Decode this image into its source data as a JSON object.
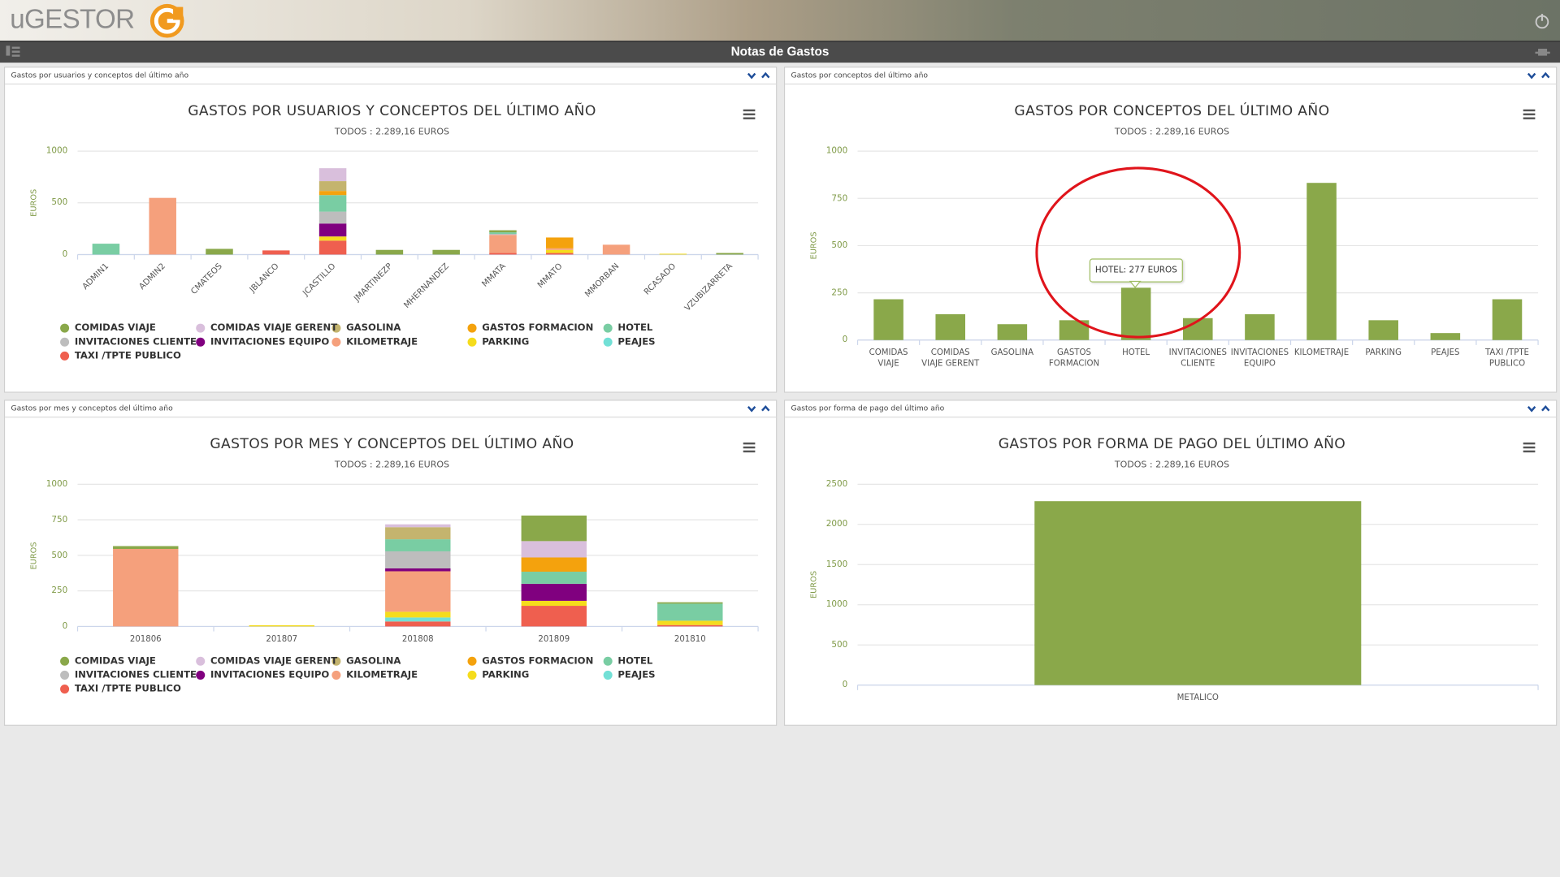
{
  "app": {
    "logo": "uGESTOR",
    "page_title": "Notas de Gastos"
  },
  "panels": [
    {
      "header": "Gastos por usuarios y conceptos del último año"
    },
    {
      "header": "Gastos por conceptos del último año"
    },
    {
      "header": "Gastos por mes y conceptos del último año"
    },
    {
      "header": "Gastos por forma de pago del último año"
    }
  ],
  "chart_data": [
    {
      "type": "stacked_bar",
      "title": "GASTOS POR USUARIOS Y CONCEPTOS DEL ÚLTIMO AÑO",
      "subtitle": "TODOS : 2.289,16 EUROS",
      "y_label": "EUROS",
      "xlabel_rotation": -45,
      "categories": [
        "ADMIN1",
        "ADMIN2",
        "CMATEOS",
        "JBLANCO",
        "JCASTILLO",
        "JMARTINEZP",
        "MHERNANDEZ",
        "MMATA",
        "MMATO",
        "MMORBAN",
        "RCASADO",
        "VZUBIZARRETA"
      ],
      "series": [
        {
          "name": "COMIDAS VIAJE",
          "color": "#8aa84a",
          "values": [
            0,
            0,
            55,
            0,
            0,
            45,
            45,
            20,
            0,
            0,
            0,
            15
          ]
        },
        {
          "name": "COMIDAS VIAJE GERENT",
          "color": "#d9bfdc",
          "values": [
            0,
            0,
            0,
            0,
            125,
            0,
            0,
            0,
            0,
            0,
            0,
            0
          ]
        },
        {
          "name": "GASOLINA",
          "color": "#c4b46e",
          "values": [
            0,
            0,
            0,
            0,
            95,
            0,
            0,
            0,
            0,
            0,
            0,
            0
          ]
        },
        {
          "name": "GASTOS FORMACION",
          "color": "#f4a20d",
          "values": [
            0,
            0,
            0,
            0,
            40,
            0,
            0,
            0,
            105,
            0,
            0,
            0
          ]
        },
        {
          "name": "HOTEL",
          "color": "#79cda3",
          "values": [
            105,
            0,
            0,
            0,
            160,
            0,
            0,
            15,
            0,
            0,
            0,
            0
          ]
        },
        {
          "name": "INVITACIONES CLIENTE",
          "color": "#bdbdbd",
          "values": [
            0,
            0,
            0,
            0,
            115,
            0,
            0,
            10,
            0,
            0,
            0,
            0
          ]
        },
        {
          "name": "INVITACIONES EQUIPO",
          "color": "#80007f",
          "values": [
            0,
            0,
            0,
            0,
            125,
            0,
            0,
            0,
            0,
            0,
            0,
            0
          ]
        },
        {
          "name": "KILOMETRAJE",
          "color": "#f5a07c",
          "values": [
            0,
            548,
            0,
            0,
            0,
            0,
            0,
            175,
            15,
            95,
            0,
            0
          ]
        },
        {
          "name": "PARKING",
          "color": "#f5dc1c",
          "values": [
            0,
            0,
            0,
            0,
            40,
            0,
            0,
            0,
            30,
            0,
            8,
            0
          ]
        },
        {
          "name": "PEAJES",
          "color": "#72e0d6",
          "values": [
            0,
            0,
            0,
            0,
            0,
            0,
            0,
            0,
            0,
            0,
            0,
            0
          ]
        },
        {
          "name": "TAXI /TPTE PUBLICO",
          "color": "#ef5f4f",
          "values": [
            0,
            0,
            0,
            40,
            135,
            0,
            0,
            15,
            15,
            0,
            0,
            0
          ]
        }
      ],
      "ylim": [
        0,
        1000
      ],
      "yticks": [
        0,
        500,
        1000
      ],
      "grid": true
    },
    {
      "type": "bar",
      "title": "GASTOS POR CONCEPTOS DEL ÚLTIMO AÑO",
      "subtitle": "TODOS : 2.289,16 EUROS",
      "y_label": "EUROS",
      "tooltip": "HOTEL: 277 EUROS",
      "categories": [
        "COMIDAS VIAJE",
        "COMIDAS VIAJE GERENT",
        "GASOLINA",
        "GASTOS FORMACION",
        "HOTEL",
        "INVITACIONES CLIENTE",
        "INVITACIONES EQUIPO",
        "KILOMETRAJE",
        "PARKING",
        "PEAJES",
        "TAXI /TPTE PUBLICO"
      ],
      "values": [
        216,
        137,
        84,
        105,
        277,
        116,
        137,
        832,
        105,
        37,
        216
      ],
      "color": "#8aa84a",
      "ylim": [
        0,
        1000
      ],
      "yticks": [
        0,
        250,
        500,
        750,
        1000
      ],
      "grid": true
    },
    {
      "type": "stacked_bar",
      "title": "GASTOS POR MES Y CONCEPTOS DEL ÚLTIMO AÑO",
      "subtitle": "TODOS : 2.289,16 EUROS",
      "y_label": "EUROS",
      "categories": [
        "201806",
        "201807",
        "201808",
        "201809",
        "201810"
      ],
      "series": [
        {
          "name": "COMIDAS VIAJE",
          "color": "#8aa84a",
          "values": [
            20,
            0,
            0,
            180,
            10
          ]
        },
        {
          "name": "COMIDAS VIAJE GERENT",
          "color": "#d9bfdc",
          "values": [
            0,
            0,
            20,
            115,
            0
          ]
        },
        {
          "name": "GASOLINA",
          "color": "#c4b46e",
          "values": [
            0,
            0,
            85,
            0,
            0
          ]
        },
        {
          "name": "GASTOS FORMACION",
          "color": "#f4a20d",
          "values": [
            0,
            0,
            0,
            100,
            0
          ]
        },
        {
          "name": "HOTEL",
          "color": "#79cda3",
          "values": [
            0,
            0,
            85,
            85,
            120
          ]
        },
        {
          "name": "INVITACIONES CLIENTE",
          "color": "#bdbdbd",
          "values": [
            0,
            0,
            120,
            0,
            0
          ]
        },
        {
          "name": "INVITACIONES EQUIPO",
          "color": "#80007f",
          "values": [
            0,
            0,
            20,
            120,
            0
          ]
        },
        {
          "name": "KILOMETRAJE",
          "color": "#f5a07c",
          "values": [
            545,
            0,
            285,
            0,
            0
          ]
        },
        {
          "name": "PARKING",
          "color": "#f5dc1c",
          "values": [
            0,
            8,
            40,
            35,
            30
          ]
        },
        {
          "name": "PEAJES",
          "color": "#72e0d6",
          "values": [
            0,
            0,
            28,
            0,
            0
          ]
        },
        {
          "name": "TAXI /TPTE PUBLICO",
          "color": "#ef5f4f",
          "values": [
            0,
            0,
            35,
            145,
            10
          ]
        }
      ],
      "ylim": [
        0,
        1000
      ],
      "yticks": [
        0,
        250,
        500,
        750,
        1000
      ],
      "grid": true
    },
    {
      "type": "bar",
      "title": "GASTOS POR FORMA DE PAGO DEL ÚLTIMO AÑO",
      "subtitle": "TODOS : 2.289,16 EUROS",
      "y_label": "EUROS",
      "categories": [
        "METALICO"
      ],
      "values": [
        2289.16
      ],
      "color": "#8aa84a",
      "ylim": [
        0,
        2500
      ],
      "yticks": [
        0,
        500,
        1000,
        1500,
        2000,
        2500
      ],
      "grid": true
    }
  ]
}
